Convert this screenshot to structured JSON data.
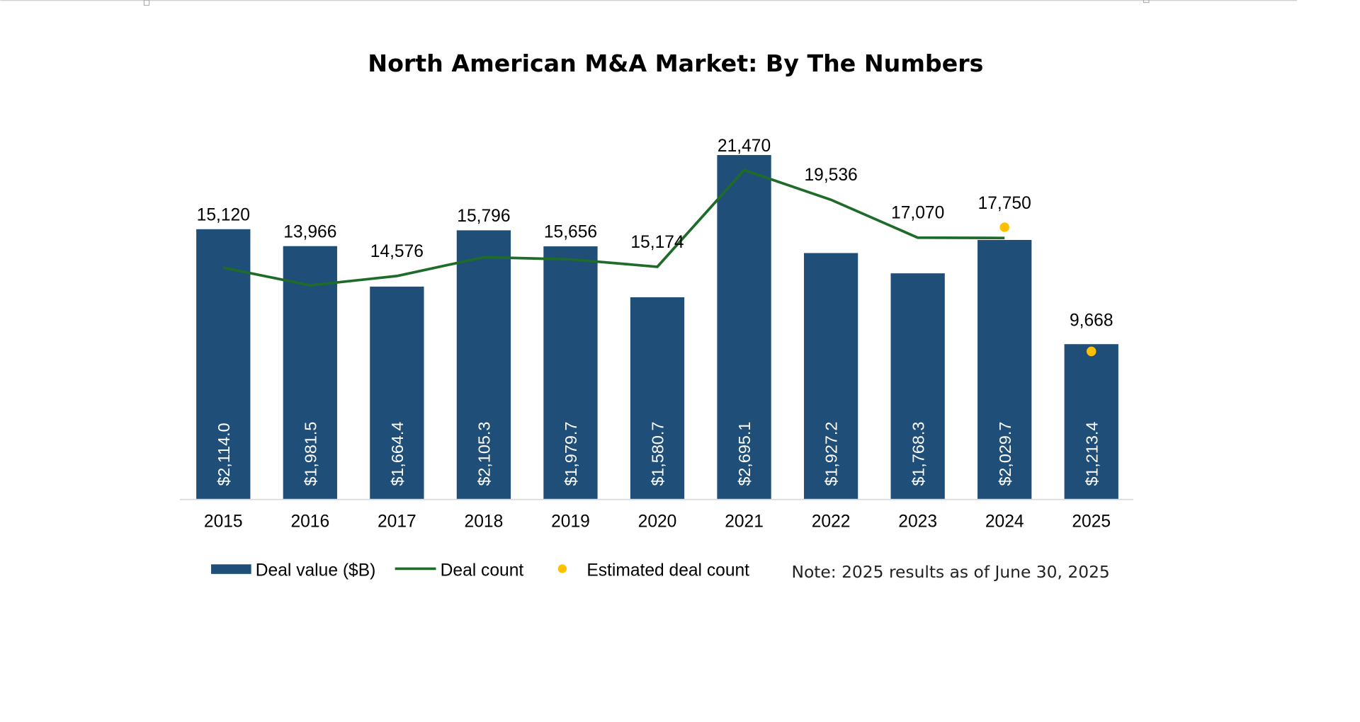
{
  "chart_data": {
    "type": "bar",
    "title": "North American M&A Market: By The Numbers",
    "categories": [
      "2015",
      "2016",
      "2017",
      "2018",
      "2019",
      "2020",
      "2021",
      "2022",
      "2023",
      "2024",
      "2025"
    ],
    "series": [
      {
        "name": "Deal value ($B)",
        "type": "bar",
        "values": [
          2114.0,
          1981.5,
          1664.4,
          2105.3,
          1979.7,
          1580.7,
          2695.1,
          1927.2,
          1768.3,
          2029.7,
          1213.4
        ],
        "labels": [
          "$2,114.0",
          "$1,981.5",
          "$1,664.4",
          "$2,105.3",
          "$1,979.7",
          "$1,580.7",
          "$2,695.1",
          "$1,927.2",
          "$1,768.3",
          "$2,029.7",
          "$1,213.4"
        ],
        "color": "#1F4E79"
      },
      {
        "name": "Deal count",
        "type": "line",
        "values": [
          15120,
          13966,
          14576,
          15796,
          15656,
          15174,
          21470,
          19536,
          17070,
          17050,
          null
        ],
        "labels": [
          "15,120",
          "13,966",
          "14,576",
          "15,796",
          "15,656",
          "15,174",
          "21,470",
          "19,536",
          "17,070",
          null,
          null
        ],
        "color": "#1E6B2A"
      },
      {
        "name": "Estimated deal count",
        "type": "scatter",
        "values": [
          null,
          null,
          null,
          null,
          null,
          null,
          null,
          null,
          null,
          17750,
          9668
        ],
        "labels": [
          null,
          null,
          null,
          null,
          null,
          null,
          null,
          null,
          null,
          "17,750",
          "9,668"
        ],
        "color": "#FFC000"
      }
    ],
    "legend_position": "bottom",
    "grid": false,
    "note": "Note: 2025 results as of June 30, 2025"
  }
}
